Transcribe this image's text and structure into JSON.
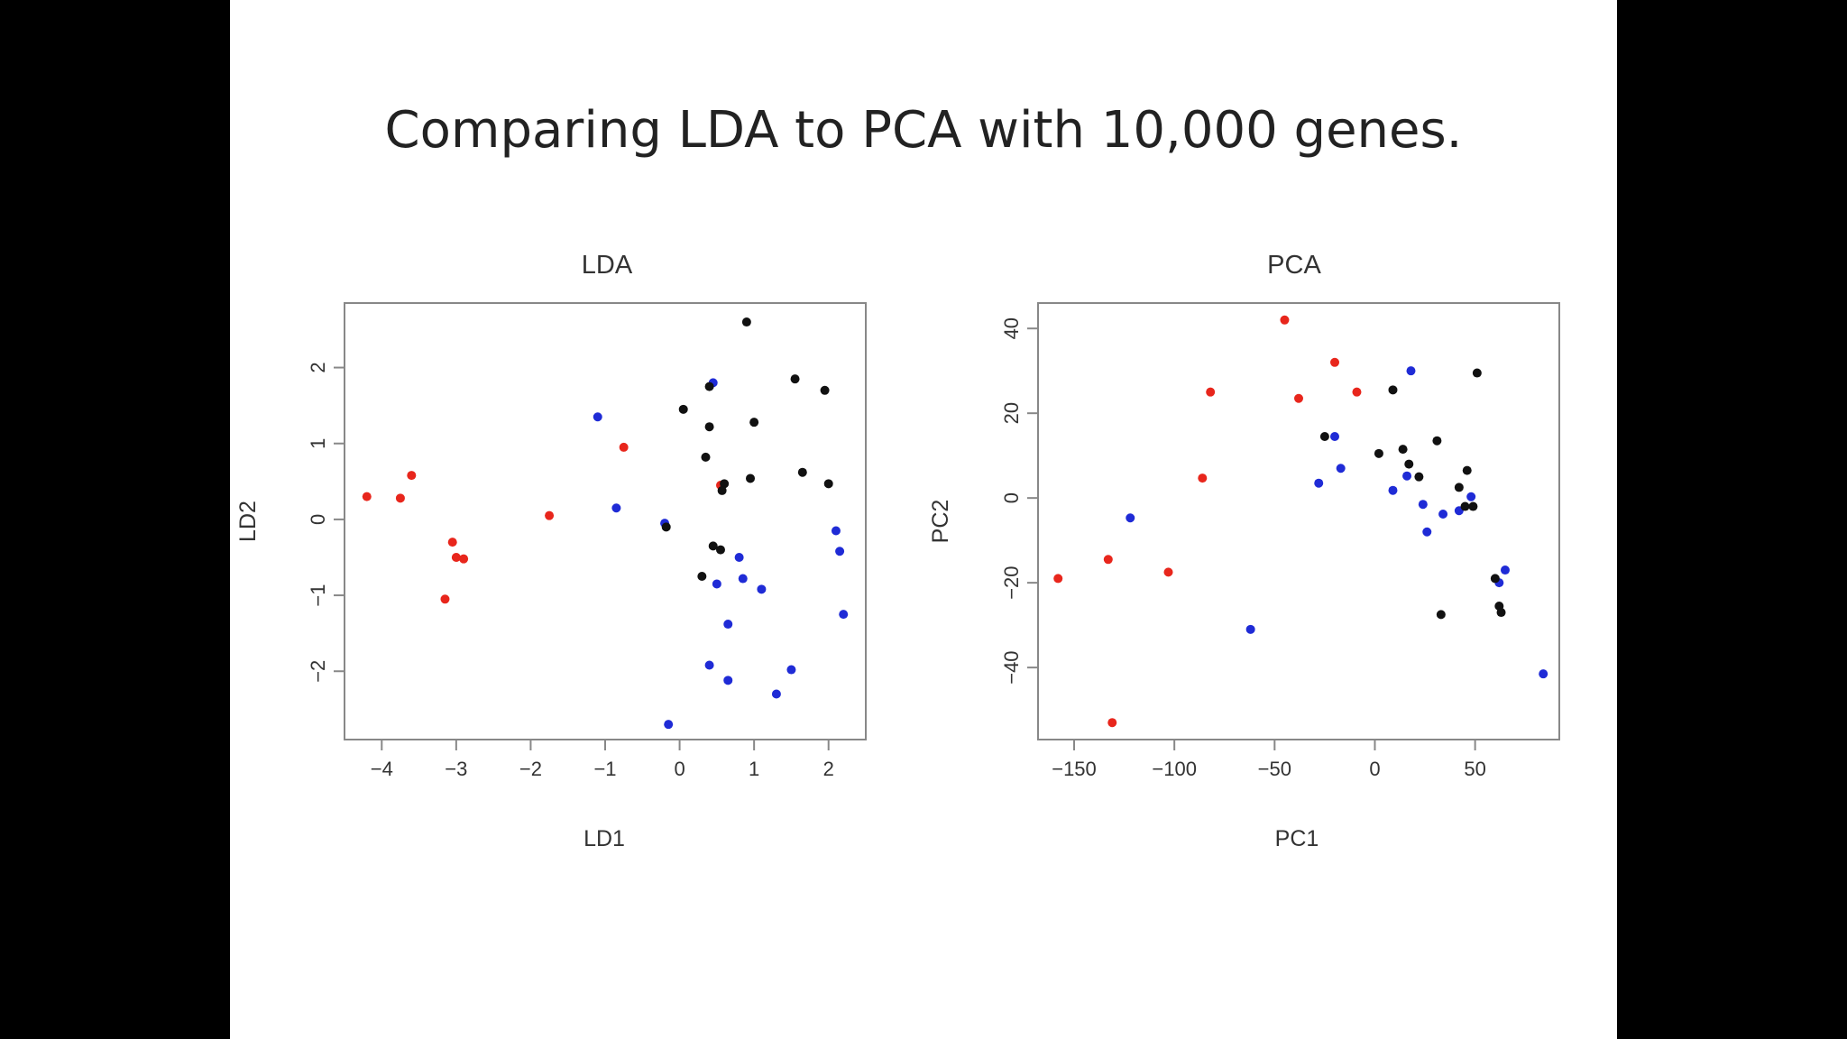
{
  "slide": {
    "title": "Comparing LDA to PCA with 10,000 genes."
  },
  "colors": {
    "red": "#e8261c",
    "blue": "#1f2bd6",
    "black": "#111111"
  },
  "chart_data": [
    {
      "type": "scatter",
      "title": "LDA",
      "xlabel": "LD1",
      "ylabel": "LD2",
      "xlim": [
        -4.5,
        2.5
      ],
      "ylim": [
        -2.9,
        2.85
      ],
      "xticks": [
        -4,
        -3,
        -2,
        -1,
        0,
        1,
        2
      ],
      "yticks": [
        -2,
        -1,
        0,
        1,
        2
      ],
      "xtick_labels": [
        "−4",
        "−3",
        "−2",
        "−1",
        "0",
        "1",
        "2"
      ],
      "ytick_labels": [
        "−2",
        "−1",
        "0",
        "1",
        "2"
      ],
      "series": [
        {
          "name": "red",
          "color": "#e8261c",
          "points": [
            [
              -4.2,
              0.3
            ],
            [
              -3.75,
              0.28
            ],
            [
              -3.6,
              0.58
            ],
            [
              -3.05,
              -0.3
            ],
            [
              -3.0,
              -0.5
            ],
            [
              -2.9,
              -0.52
            ],
            [
              -3.15,
              -1.05
            ],
            [
              -1.75,
              0.05
            ],
            [
              -0.75,
              0.95
            ],
            [
              0.55,
              0.45
            ]
          ]
        },
        {
          "name": "blue",
          "color": "#1f2bd6",
          "points": [
            [
              -1.1,
              1.35
            ],
            [
              -0.85,
              0.15
            ],
            [
              -0.2,
              -0.05
            ],
            [
              0.45,
              1.8
            ],
            [
              0.8,
              -0.5
            ],
            [
              0.5,
              -0.85
            ],
            [
              0.85,
              -0.78
            ],
            [
              1.1,
              -0.92
            ],
            [
              0.65,
              -1.38
            ],
            [
              0.4,
              -1.92
            ],
            [
              0.65,
              -2.12
            ],
            [
              1.5,
              -1.98
            ],
            [
              1.3,
              -2.3
            ],
            [
              -0.15,
              -2.7
            ],
            [
              2.1,
              -0.15
            ],
            [
              2.15,
              -0.42
            ],
            [
              2.2,
              -1.25
            ]
          ]
        },
        {
          "name": "black",
          "color": "#111111",
          "points": [
            [
              0.9,
              2.6
            ],
            [
              0.4,
              1.75
            ],
            [
              0.05,
              1.45
            ],
            [
              0.4,
              1.22
            ],
            [
              1.0,
              1.28
            ],
            [
              1.55,
              1.85
            ],
            [
              1.95,
              1.7
            ],
            [
              0.35,
              0.82
            ],
            [
              1.65,
              0.62
            ],
            [
              0.95,
              0.54
            ],
            [
              0.6,
              0.47
            ],
            [
              0.57,
              0.38
            ],
            [
              2.0,
              0.47
            ],
            [
              0.45,
              -0.35
            ],
            [
              0.55,
              -0.4
            ],
            [
              -0.18,
              -0.1
            ],
            [
              0.3,
              -0.75
            ]
          ]
        }
      ]
    },
    {
      "type": "scatter",
      "title": "PCA",
      "xlabel": "PC1",
      "ylabel": "PC2",
      "xlim": [
        -168,
        92
      ],
      "ylim": [
        -57,
        46
      ],
      "xticks": [
        -150,
        -100,
        -50,
        0,
        50
      ],
      "yticks": [
        -40,
        -20,
        0,
        20,
        40
      ],
      "xtick_labels": [
        "−150",
        "−100",
        "−50",
        "0",
        "50"
      ],
      "ytick_labels": [
        "−40",
        "−20",
        "0",
        "20",
        "40"
      ],
      "series": [
        {
          "name": "red",
          "color": "#e8261c",
          "points": [
            [
              -45,
              42
            ],
            [
              -20,
              32
            ],
            [
              -82,
              25
            ],
            [
              -9,
              25
            ],
            [
              -38,
              23.5
            ],
            [
              -86,
              4.7
            ],
            [
              -158,
              -19
            ],
            [
              -133,
              -14.5
            ],
            [
              -103,
              -17.5
            ],
            [
              -131,
              -53
            ]
          ]
        },
        {
          "name": "blue",
          "color": "#1f2bd6",
          "points": [
            [
              18,
              30
            ],
            [
              -20,
              14.5
            ],
            [
              -17,
              7
            ],
            [
              -28,
              3.5
            ],
            [
              9,
              1.8
            ],
            [
              16,
              5.2
            ],
            [
              24,
              -1.5
            ],
            [
              34,
              -3.8
            ],
            [
              42,
              -3
            ],
            [
              48,
              0.3
            ],
            [
              26,
              -8
            ],
            [
              -122,
              -4.7
            ],
            [
              -62,
              -31
            ],
            [
              62,
              -20
            ],
            [
              65,
              -17
            ],
            [
              84,
              -41.5
            ]
          ]
        },
        {
          "name": "black",
          "color": "#111111",
          "points": [
            [
              51,
              29.5
            ],
            [
              9,
              25.5
            ],
            [
              -25,
              14.5
            ],
            [
              31,
              13.5
            ],
            [
              2,
              10.5
            ],
            [
              14,
              11.5
            ],
            [
              17,
              8
            ],
            [
              22,
              5
            ],
            [
              46,
              6.5
            ],
            [
              42,
              2.5
            ],
            [
              45,
              -2
            ],
            [
              49,
              -2
            ],
            [
              60,
              -19
            ],
            [
              62,
              -25.5
            ],
            [
              63,
              -27
            ],
            [
              33,
              -27.5
            ]
          ]
        }
      ]
    }
  ]
}
